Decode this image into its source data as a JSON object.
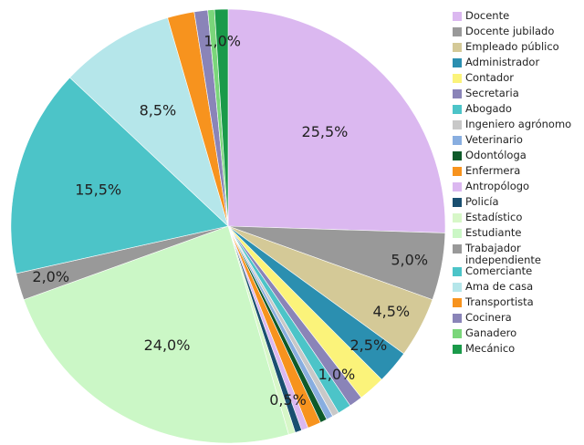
{
  "chart_data": {
    "type": "pie",
    "categories": [
      "Docente",
      "Docente jubilado",
      "Empleado público",
      "Administrador",
      "Contador",
      "Secretaria",
      "Abogado",
      "Ingeniero agrónomo",
      "Veterinario",
      "Odontóloga",
      "Enfermera",
      "Antropólogo",
      "Policía",
      "Estadístico",
      "Estudiante",
      "Trabajador independiente",
      "Comerciante",
      "Ama de casa",
      "Transportista",
      "Cocinera",
      "Ganadero",
      "Mecánico"
    ],
    "values": [
      25.5,
      5.0,
      4.5,
      2.5,
      2.0,
      1.0,
      1.0,
      0.5,
      0.5,
      0.5,
      1.0,
      0.5,
      0.5,
      0.5,
      24.0,
      2.0,
      15.5,
      8.5,
      2.0,
      1.0,
      0.5,
      1.0
    ],
    "value_labels": [
      "25,5%",
      "5,0%",
      "4,5%",
      "2,5%",
      null,
      "1,0%",
      null,
      null,
      null,
      null,
      null,
      null,
      "0,5%",
      null,
      "24,0%",
      "2,0%",
      "15,5%",
      "8,5%",
      null,
      null,
      null,
      "1,0%"
    ],
    "colors": [
      "#dbb8f0",
      "#999999",
      "#d4c997",
      "#2b8fb0",
      "#fbf37a",
      "#8a84b8",
      "#4cc4c8",
      "#c8c8c8",
      "#88aee0",
      "#0e5a2a",
      "#f7931e",
      "#dbb8f0",
      "#1a4f70",
      "#d7f7c8",
      "#cbf7c6",
      "#999999",
      "#4cc4c8",
      "#b5e6ea",
      "#f7931e",
      "#8a84b8",
      "#7ad67a",
      "#1a9a4a"
    ]
  }
}
